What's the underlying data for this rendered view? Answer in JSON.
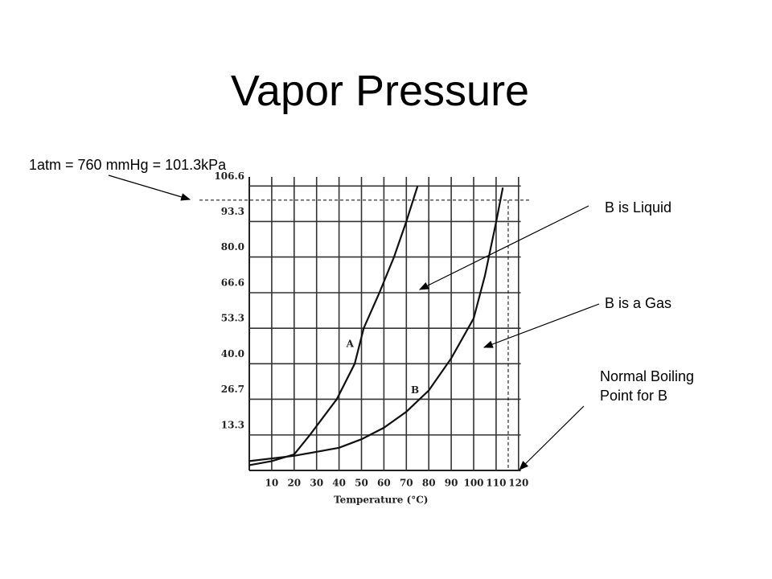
{
  "slide_title": "Vapor Pressure",
  "chart_data": {
    "type": "line",
    "x_label": "Temperature (°C)",
    "xlim": [
      0,
      121
    ],
    "ylim": [
      0,
      110
    ],
    "xticks": [
      10,
      20,
      30,
      40,
      50,
      60,
      70,
      80,
      90,
      100,
      110,
      120
    ],
    "yticks": [
      13.3,
      26.7,
      {
        "value": 40,
        "label": "40.0"
      },
      53.3,
      66.6,
      {
        "value": 80,
        "label": "80.0"
      },
      93.3,
      106.6
    ],
    "grid": true,
    "series": [
      {
        "name": "A",
        "color": "#111111",
        "x": [
          0,
          10,
          20,
          27,
          39,
          47,
          51,
          58,
          64.5,
          70,
          75
        ],
        "values": [
          2,
          3.5,
          6,
          13.3,
          26.7,
          40,
          53.3,
          66.6,
          80,
          93.3,
          106.6
        ]
      },
      {
        "name": "B",
        "color": "#111111",
        "x": [
          0,
          20,
          40,
          50,
          60,
          70,
          80,
          90,
          100,
          105,
          110,
          113
        ],
        "values": [
          3.5,
          5.5,
          8.5,
          11.7,
          16,
          22,
          30,
          42,
          57,
          73,
          93,
          106
        ]
      }
    ],
    "reference_y": 101.3,
    "reference_x": 115.4,
    "annotations": [
      "1atm = 760 mmHg = 101.3kPa",
      "B is Liquid",
      "B is a Gas",
      "Normal Boiling Point for B"
    ]
  }
}
